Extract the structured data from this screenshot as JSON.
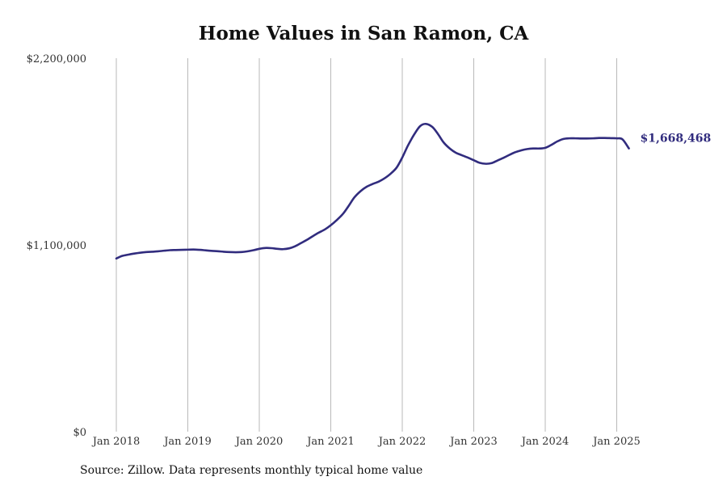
{
  "chart_data": {
    "type": "line",
    "title": "Home Values in San Ramon, CA",
    "xlabel": "",
    "ylabel": "",
    "ylim": [
      0,
      2200000
    ],
    "y_ticks": [
      {
        "value": 0,
        "label": "$0"
      },
      {
        "value": 1100000,
        "label": "$1,100,000"
      },
      {
        "value": 2200000,
        "label": "$2,200,000"
      }
    ],
    "x_ticks": [
      {
        "value": 2018.0,
        "label": "Jan 2018"
      },
      {
        "value": 2019.0,
        "label": "Jan 2019"
      },
      {
        "value": 2020.0,
        "label": "Jan 2020"
      },
      {
        "value": 2021.0,
        "label": "Jan 2021"
      },
      {
        "value": 2022.0,
        "label": "Jan 2022"
      },
      {
        "value": 2023.0,
        "label": "Jan 2023"
      },
      {
        "value": 2024.0,
        "label": "Jan 2024"
      },
      {
        "value": 2025.0,
        "label": "Jan 2025"
      }
    ],
    "xlim": [
      2018.0,
      2025.17
    ],
    "grid": "vertical",
    "line_color": "#312c7e",
    "end_label": "$1,668,468",
    "series": [
      {
        "x": [
          2018.0,
          2018.08,
          2018.17,
          2018.25,
          2018.33,
          2018.42,
          2018.5,
          2018.58,
          2018.67,
          2018.75,
          2018.83,
          2018.92,
          2019.0,
          2019.08,
          2019.17,
          2019.25,
          2019.33,
          2019.42,
          2019.5,
          2019.58,
          2019.67,
          2019.75,
          2019.83,
          2019.92,
          2020.0,
          2020.08,
          2020.17,
          2020.25,
          2020.33,
          2020.42,
          2020.5,
          2020.58,
          2020.67,
          2020.75,
          2020.83,
          2020.92,
          2021.0,
          2021.08,
          2021.17,
          2021.25,
          2021.33,
          2021.42,
          2021.5,
          2021.58,
          2021.67,
          2021.75,
          2021.83,
          2021.92,
          2022.0,
          2022.08,
          2022.17,
          2022.25,
          2022.33,
          2022.42,
          2022.5,
          2022.58,
          2022.67,
          2022.75,
          2022.83,
          2022.92,
          2023.0,
          2023.08,
          2023.17,
          2023.25,
          2023.33,
          2023.42,
          2023.5,
          2023.58,
          2023.67,
          2023.75,
          2023.83,
          2023.92,
          2024.0,
          2024.08,
          2024.17,
          2024.25,
          2024.33,
          2024.42,
          2024.5,
          2024.58,
          2024.67,
          2024.75,
          2024.83,
          2024.92,
          2025.0,
          2025.08,
          2025.17
        ],
        "y": [
          1020000,
          1035000,
          1043000,
          1049000,
          1054000,
          1058000,
          1060000,
          1062000,
          1066000,
          1069000,
          1070000,
          1071000,
          1072000,
          1073000,
          1071000,
          1068000,
          1065000,
          1063000,
          1060000,
          1058000,
          1057000,
          1058000,
          1062000,
          1069000,
          1077000,
          1082000,
          1081000,
          1077000,
          1075000,
          1080000,
          1092000,
          1110000,
          1131000,
          1152000,
          1172000,
          1192000,
          1216000,
          1245000,
          1283000,
          1330000,
          1380000,
          1418000,
          1442000,
          1458000,
          1473000,
          1492000,
          1517000,
          1555000,
          1615000,
          1686000,
          1753000,
          1800000,
          1813000,
          1795000,
          1753000,
          1703000,
          1666000,
          1643000,
          1629000,
          1614000,
          1599000,
          1584000,
          1578000,
          1582000,
          1597000,
          1614000,
          1631000,
          1646000,
          1658000,
          1665000,
          1668000,
          1668000,
          1672000,
          1688000,
          1710000,
          1724000,
          1728000,
          1728000,
          1727000,
          1727000,
          1728000,
          1730000,
          1730000,
          1729000,
          1728000,
          1722000,
          1668468
        ]
      }
    ]
  },
  "footer": {
    "source": "Source: Zillow. Data represents monthly typical home value"
  }
}
